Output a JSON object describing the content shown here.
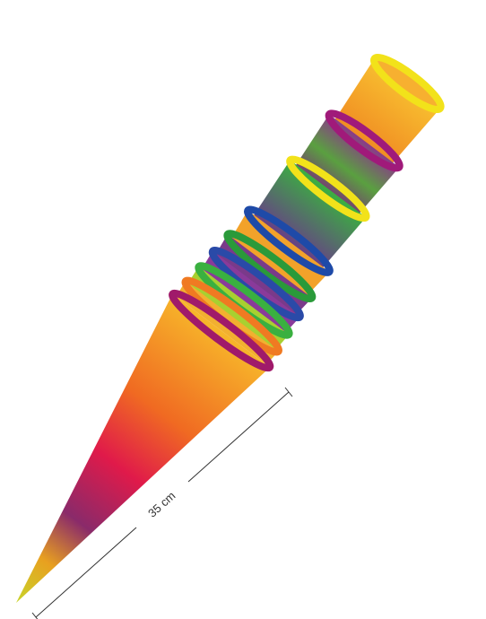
{
  "dimension": {
    "label": "35 cm"
  }
}
